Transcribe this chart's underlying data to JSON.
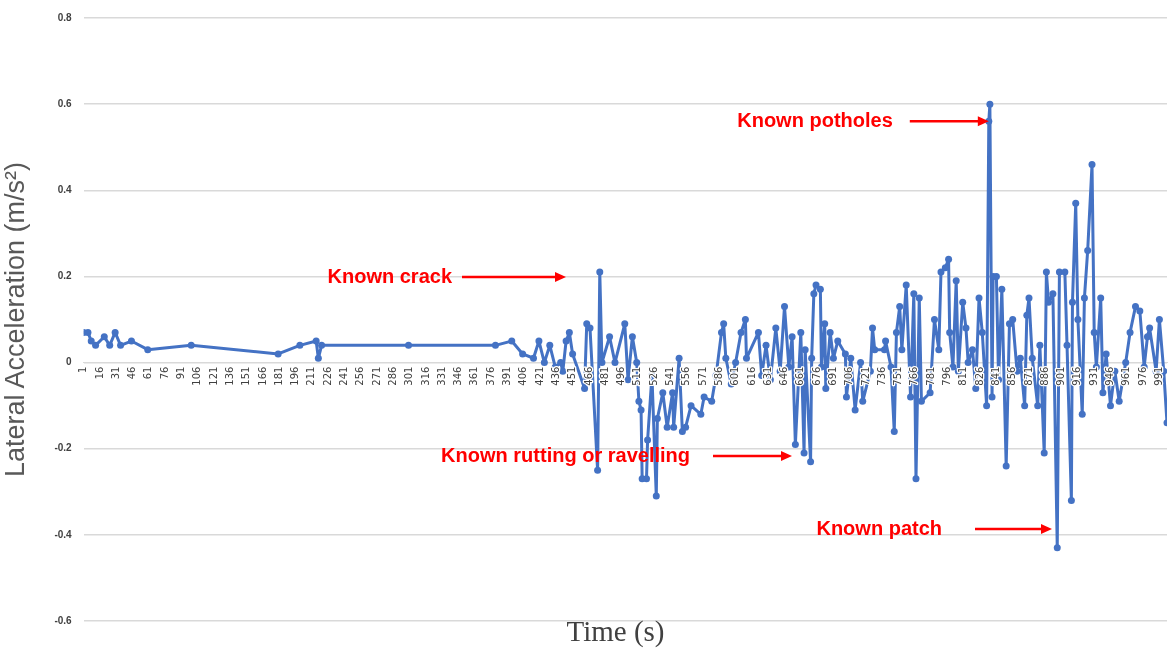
{
  "chart_data": {
    "type": "line",
    "xlabel": "Time (s)",
    "ylabel": "Lateral Acceleration (m/s²)",
    "xlim": [
      1,
      998
    ],
    "xticks": [
      1,
      16,
      31,
      46,
      61,
      76,
      91,
      106,
      121,
      136,
      151,
      166,
      181,
      196,
      211,
      226,
      241,
      256,
      271,
      286,
      301,
      316,
      331,
      346,
      361,
      376,
      391,
      406,
      421,
      436,
      451,
      466,
      481,
      496,
      511,
      526,
      541,
      556,
      571,
      586,
      601,
      616,
      631,
      646,
      661,
      676,
      691,
      706,
      721,
      736,
      751,
      766,
      781,
      796,
      811,
      826,
      841,
      856,
      871,
      886,
      901,
      916,
      931,
      946,
      961,
      976,
      991
    ],
    "ylim": [
      -0.6,
      0.8
    ],
    "yticks": [
      -0.6,
      -0.4,
      -0.2,
      0,
      0.2,
      0.4,
      0.6,
      0.8
    ],
    "grid": "y",
    "marker": "circle",
    "line_style": "solid",
    "series": [
      {
        "color": "#4472c4",
        "x": [
          1,
          5,
          8,
          12,
          20,
          25,
          30,
          35,
          45,
          60,
          100,
          180,
          200,
          215,
          217,
          220,
          300,
          380,
          395,
          405,
          415,
          420,
          425,
          430,
          435,
          440,
          442,
          445,
          448,
          451,
          462,
          464,
          467,
          474,
          476,
          478,
          485,
          490,
          499,
          502,
          506,
          510,
          512,
          514,
          515,
          519,
          520,
          524,
          528,
          529,
          534,
          538,
          543,
          544,
          549,
          552,
          555,
          560,
          569,
          572,
          579,
          583,
          588,
          590,
          592,
          597,
          601,
          606,
          610,
          611,
          622,
          625,
          629,
          633,
          638,
          642,
          646,
          650,
          653,
          656,
          661,
          664,
          665,
          670,
          671,
          673,
          675,
          679,
          680,
          683,
          684,
          688,
          691,
          695,
          702,
          703,
          707,
          711,
          716,
          718,
          725,
          727,
          729,
          738,
          739,
          744,
          747,
          749,
          752,
          754,
          758,
          762,
          765,
          767,
          770,
          772,
          780,
          784,
          788,
          790,
          794,
          797,
          798,
          801,
          804,
          806,
          810,
          813,
          815,
          819,
          822,
          825,
          828,
          832,
          834,
          835,
          837,
          838,
          841,
          843,
          846,
          850,
          853,
          856,
          860,
          863,
          867,
          869,
          871,
          874,
          879,
          881,
          885,
          887,
          889,
          893,
          897,
          899,
          904,
          906,
          910,
          911,
          914,
          916,
          920,
          922,
          925,
          929,
          931,
          933,
          937,
          939,
          942,
          946,
          950,
          954,
          960,
          964,
          969,
          973,
          977,
          980,
          982,
          988,
          991,
          995,
          998
        ],
        "values": [
          0.07,
          0.07,
          0.05,
          0.04,
          0.06,
          0.04,
          0.07,
          0.04,
          0.05,
          0.03,
          0.04,
          0.02,
          0.04,
          0.05,
          0.01,
          0.04,
          0.04,
          0.04,
          0.05,
          0.02,
          0.01,
          0.05,
          0,
          0.04,
          -0.01,
          0,
          -0.02,
          0.05,
          0.07,
          0.02,
          -0.06,
          0.09,
          0.08,
          -0.25,
          0.21,
          0,
          0.06,
          0,
          0.09,
          -0.04,
          0.06,
          0,
          -0.09,
          -0.11,
          -0.27,
          -0.27,
          -0.18,
          -0.03,
          -0.31,
          -0.13,
          -0.07,
          -0.15,
          -0.07,
          -0.15,
          0.01,
          -0.16,
          -0.15,
          -0.1,
          -0.12,
          -0.08,
          -0.09,
          -0.03,
          0.07,
          0.09,
          0.01,
          -0.05,
          0,
          0.07,
          0.1,
          0.01,
          0.07,
          -0.03,
          0.04,
          -0.04,
          0.08,
          -0.02,
          0.13,
          -0.01,
          0.06,
          -0.19,
          0.07,
          -0.21,
          0.03,
          -0.23,
          0.01,
          0.16,
          0.18,
          0.17,
          -0.01,
          0.09,
          -0.06,
          0.07,
          0.01,
          0.05,
          0.02,
          -0.08,
          0.01,
          -0.11,
          0,
          -0.09,
          -0.02,
          0.08,
          0.03,
          0.03,
          0.05,
          -0.01,
          -0.16,
          0.07,
          0.13,
          0.03,
          0.18,
          -0.08,
          0.16,
          -0.27,
          0.15,
          -0.09,
          -0.07,
          0.1,
          0.03,
          0.21,
          0.22,
          0.24,
          0.07,
          -0.01,
          0.19,
          -0.02,
          0.14,
          0.08,
          0,
          0.03,
          -0.06,
          0.15,
          0.07,
          -0.1,
          0.56,
          0.6,
          -0.08,
          0.2,
          0.2,
          -0.04,
          0.17,
          -0.24,
          0.09,
          0.1,
          -0.02,
          0.01,
          -0.1,
          0.11,
          0.15,
          0.01,
          -0.1,
          0.04,
          -0.21,
          0.21,
          0.14,
          0.16,
          -0.43,
          0.21,
          0.21,
          0.04,
          -0.32,
          0.14,
          0.37,
          0.1,
          -0.12,
          0.15,
          0.26,
          0.46,
          0.07,
          -0.01,
          0.15,
          -0.07,
          0.02,
          -0.1,
          -0.02,
          -0.09,
          0,
          0.07,
          0.13,
          0.12,
          -0.01,
          0.06,
          0.08,
          -0.02,
          0.1,
          -0.02,
          -0.14
        ]
      }
    ],
    "annotations": [
      "Known crack",
      {
        "text": "Known potholes",
        "x": 834,
        "y": 0.56
      },
      "Known rutting or ravelling",
      "Known patch"
    ]
  }
}
